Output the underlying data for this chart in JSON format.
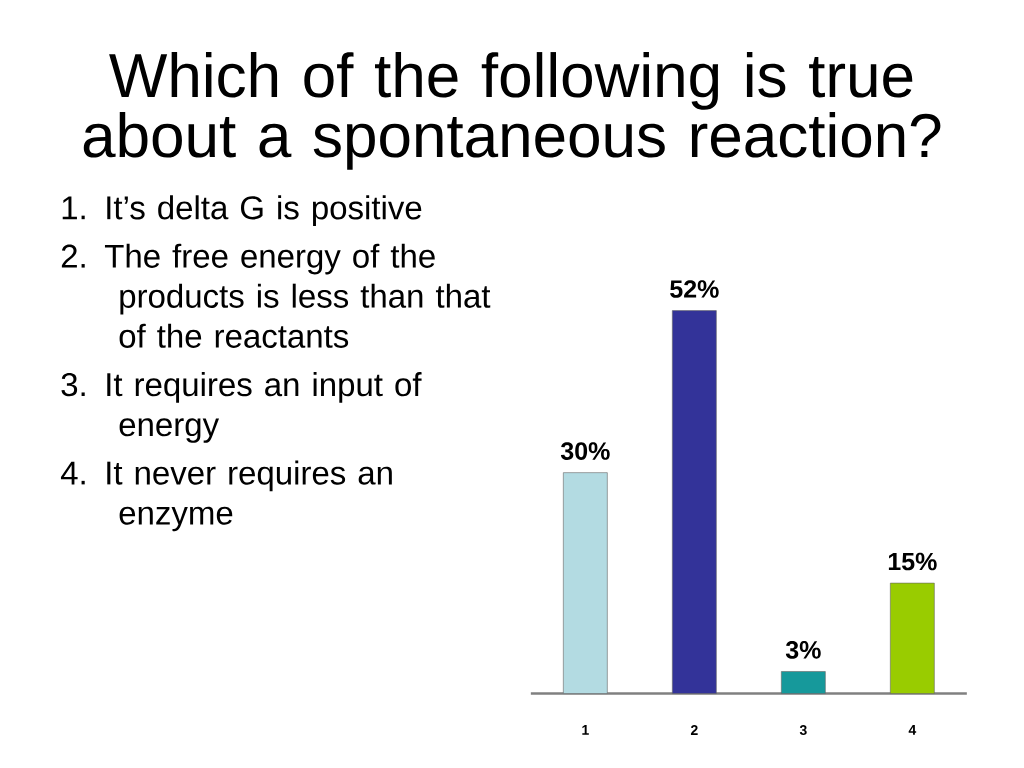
{
  "chart_data": {
    "type": "bar",
    "title": "Which of the following is true about a spontaneous reaction?",
    "categories": [
      "1",
      "2",
      "3",
      "4"
    ],
    "values": [
      30,
      52,
      3,
      15
    ],
    "colors": [
      "#b3dbe2",
      "#333399",
      "#16999b",
      "#99cc00"
    ],
    "value_labels": [
      "30%",
      "52%",
      "3%",
      "15%"
    ],
    "tick_labels": "x",
    "annotations": [
      "1. It’s delta G is positive",
      "2. The free energy of the products is less than that of the reactants",
      "3. It requires an input of energy",
      "4. It never requires an enzyme"
    ]
  }
}
